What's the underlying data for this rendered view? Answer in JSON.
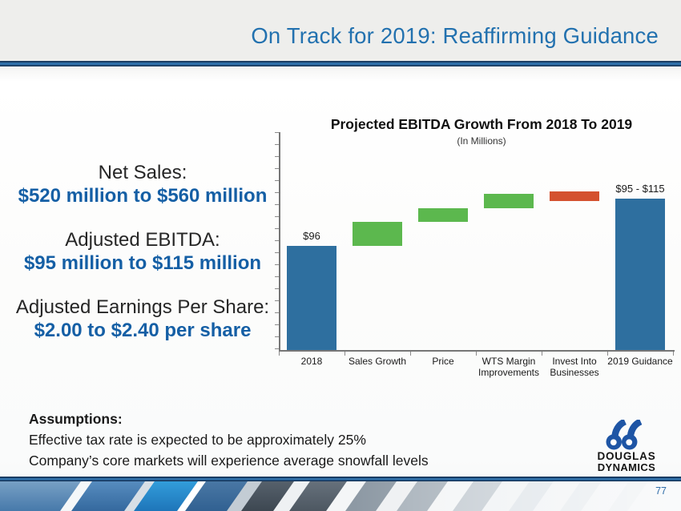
{
  "slide": {
    "title": "On Track for 2019: Reaffirming Guidance",
    "page_number": "77"
  },
  "guidance": {
    "items": [
      {
        "label": "Net Sales:",
        "value": "$520 million to $560 million"
      },
      {
        "label": "Adjusted EBITDA:",
        "value": "$95 million to $115 million"
      },
      {
        "label": "Adjusted Earnings Per Share:",
        "value": "$2.00 to $2.40 per share"
      }
    ]
  },
  "assumptions": {
    "heading": "Assumptions:",
    "lines": [
      "Effective tax rate is expected to be approximately 25%",
      "Company’s core markets will experience average snowfall levels"
    ]
  },
  "logo": {
    "icon": "double-d-icon",
    "line1": "DOUGLAS",
    "line2": "DYNAMICS"
  },
  "colors": {
    "title_blue": "#2271AF",
    "value_blue": "#155FA5",
    "bar_blue": "#2E6F9F",
    "bar_green": "#5CB84E",
    "bar_red": "#D4512F",
    "rule_blue": "#2F72AD",
    "rule_navy": "#1C3E63",
    "logo_blue": "#1E55A5",
    "page_number_blue": "#2F6DA8"
  },
  "chart_data": {
    "type": "bar",
    "subtype": "waterfall",
    "title": "Projected EBITDA Growth From 2018 To 2019",
    "subtitle": "(In Millions)",
    "categories": [
      "2018",
      "Sales Growth",
      "Price",
      "WTS Margin\nImprovements",
      "Invest Into\nBusinesses",
      "2019 Guidance"
    ],
    "axis_min": 74,
    "axis_max": 120,
    "grid": false,
    "legend": false,
    "bars": [
      {
        "name": "2018",
        "from": 74,
        "to": 96,
        "color": "bar_blue",
        "label": "$96"
      },
      {
        "name": "Sales Growth",
        "from": 96,
        "to": 101,
        "color": "bar_green",
        "label": ""
      },
      {
        "name": "Price",
        "from": 101,
        "to": 104,
        "color": "bar_green",
        "label": ""
      },
      {
        "name": "WTS Margin Improvements",
        "from": 104,
        "to": 107,
        "color": "bar_green",
        "label": ""
      },
      {
        "name": "Invest Into Businesses",
        "from": 107.5,
        "to": 105.5,
        "color": "bar_red",
        "label": ""
      },
      {
        "name": "2019 Guidance",
        "from": 74,
        "to": 106,
        "color": "bar_blue",
        "label": "$95 - $115"
      }
    ]
  }
}
